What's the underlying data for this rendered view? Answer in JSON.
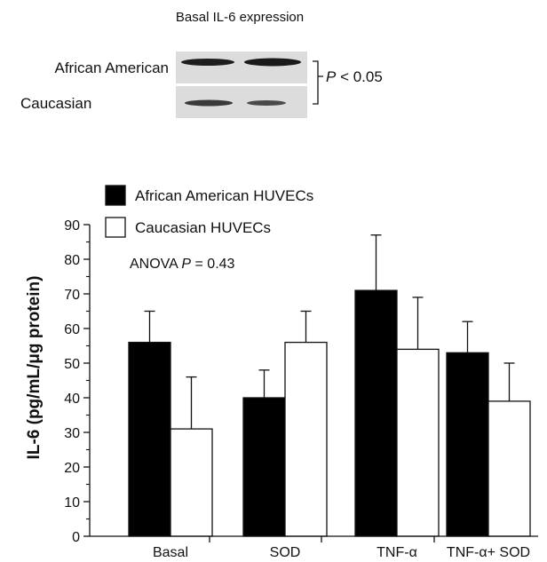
{
  "blot": {
    "title": "Basal IL-6 expression",
    "rows": [
      "African American",
      "Caucasian"
    ],
    "significance": {
      "prefix": "P",
      "text": " < 0.05"
    }
  },
  "chart_data": {
    "type": "bar",
    "categories": [
      "Basal",
      "SOD",
      "TNF-α",
      "TNF-α+ SOD"
    ],
    "series": [
      {
        "name": "African American HUVECs",
        "values": [
          56,
          40,
          71,
          53
        ],
        "errors": [
          9,
          8,
          16,
          9
        ],
        "color": "#000000"
      },
      {
        "name": "Caucasian HUVECs",
        "values": [
          31,
          56,
          54,
          39
        ],
        "errors": [
          15,
          9,
          15,
          11
        ],
        "color": "#ffffff"
      }
    ],
    "xlabel": "",
    "ylabel": "IL-6 (pg/mL/μg protein)",
    "ylim": [
      0,
      90
    ],
    "yticks": [
      0,
      10,
      20,
      30,
      40,
      50,
      60,
      70,
      80,
      90
    ],
    "annotation": {
      "prefix": "ANOVA ",
      "italic": "P",
      "suffix": " = 0.43"
    },
    "legend_position": "top-left",
    "grid": false
  }
}
